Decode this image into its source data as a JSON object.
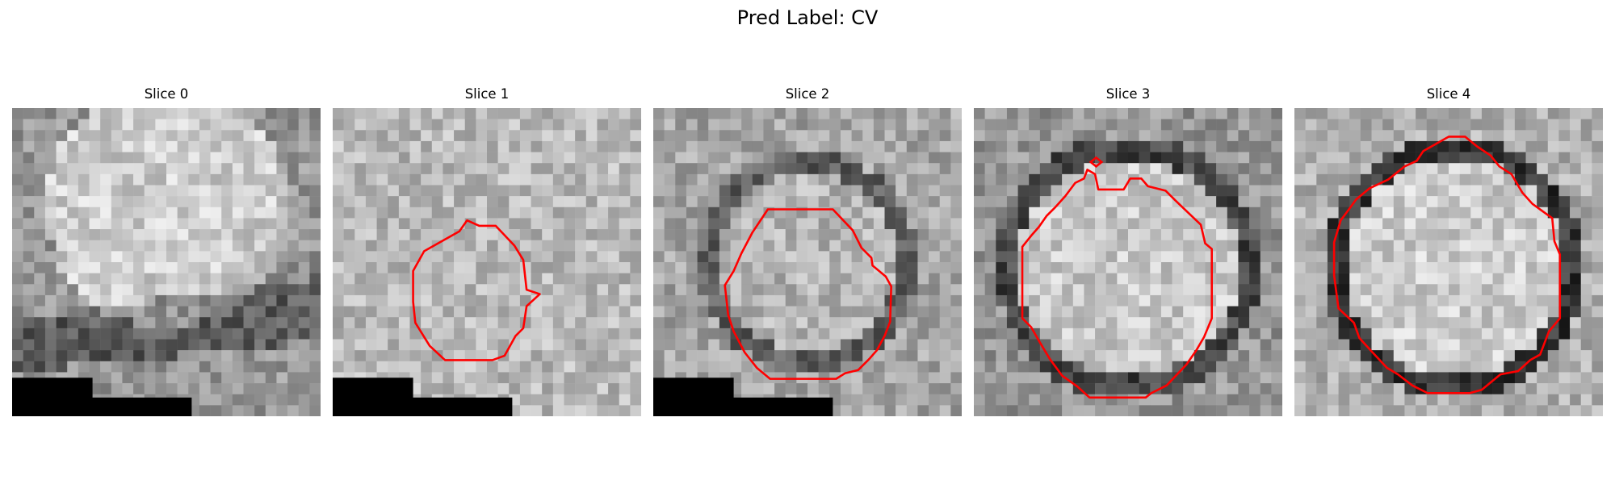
{
  "figure": {
    "title": "Pred Label: CV"
  },
  "panels": [
    {
      "title": "Slice 0",
      "seed": 11,
      "contour": false,
      "mask": "full",
      "base": {
        "type": "blob",
        "center": [
          14,
          9
        ],
        "radius": 11,
        "inside": 205,
        "outside": 150,
        "dark_band": true
      }
    },
    {
      "title": "Slice 1",
      "seed": 23,
      "contour": true,
      "mask": "full",
      "base": {
        "type": "flat",
        "level": 185
      }
    },
    {
      "title": "Slice 2",
      "seed": 37,
      "contour": true,
      "mask": "partial",
      "base": {
        "type": "cell",
        "center": [
          14,
          14
        ],
        "radius": 8.5,
        "inside": 180,
        "rim": 95,
        "outside": 165
      }
    },
    {
      "title": "Slice 3",
      "seed": 41,
      "contour": true,
      "mask": "none",
      "base": {
        "type": "cell",
        "center": [
          14,
          14.5
        ],
        "radius": 10.5,
        "inside": 200,
        "rim": 70,
        "outside": 150
      }
    },
    {
      "title": "Slice 4",
      "seed": 53,
      "contour": true,
      "mask": "none",
      "base": {
        "type": "cell",
        "center": [
          14.5,
          14.5
        ],
        "radius": 10.5,
        "inside": 205,
        "rim": 55,
        "outside": 175
      }
    }
  ],
  "colors": {
    "contour": "#ff0000",
    "mask": "#000000"
  }
}
